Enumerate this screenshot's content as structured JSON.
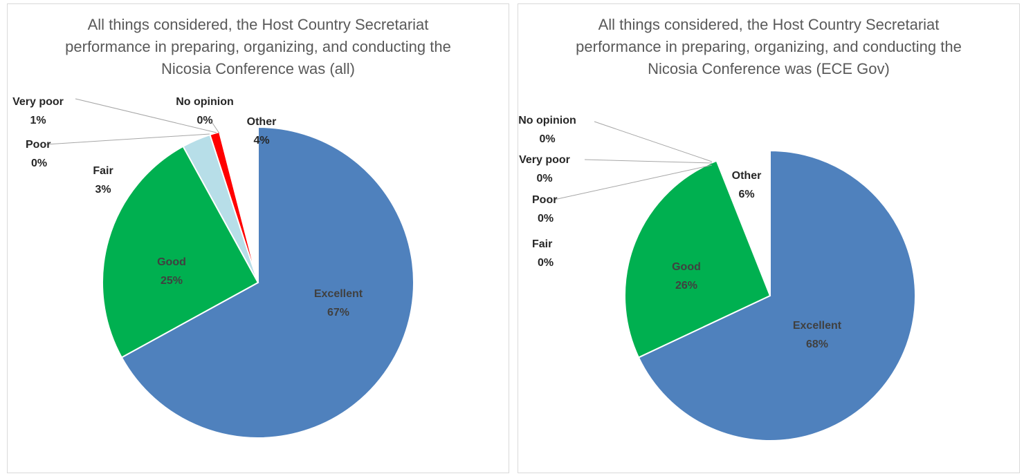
{
  "chart_data": [
    {
      "type": "pie",
      "title": "All things considered, the Host Country Secretariat performance in preparing, organizing, and conducting the Nicosia Conference was (all)",
      "series": [
        {
          "categories": [
            "Excellent",
            "Good",
            "Fair",
            "Poor",
            "Very poor",
            "No opinion",
            "Other"
          ],
          "values": [
            67,
            25,
            3,
            0,
            1,
            0,
            4
          ],
          "labels": [
            "67%",
            "25%",
            "3%",
            "0%",
            "1%",
            "0%",
            "4%"
          ]
        }
      ],
      "colors": [
        "#4f81bd",
        "#00b050",
        "#b7dee8",
        "#ffc000",
        "#ff0000",
        "#7030a0",
        "#ffffff"
      ]
    },
    {
      "type": "pie",
      "title": "All things considered, the Host Country Secretariat performance in preparing, organizing, and conducting the Nicosia Conference was (ECE Gov)",
      "series": [
        {
          "categories": [
            "Excellent",
            "Good",
            "Fair",
            "Poor",
            "Very poor",
            "No opinion",
            "Other"
          ],
          "values": [
            68,
            26,
            0,
            0,
            0,
            0,
            6
          ],
          "labels": [
            "68%",
            "26%",
            "0%",
            "0%",
            "0%",
            "0%",
            "6%"
          ]
        }
      ],
      "colors": [
        "#4f81bd",
        "#00b050",
        "#b7dee8",
        "#ffc000",
        "#ff0000",
        "#7030a0",
        "#ffffff"
      ]
    }
  ]
}
